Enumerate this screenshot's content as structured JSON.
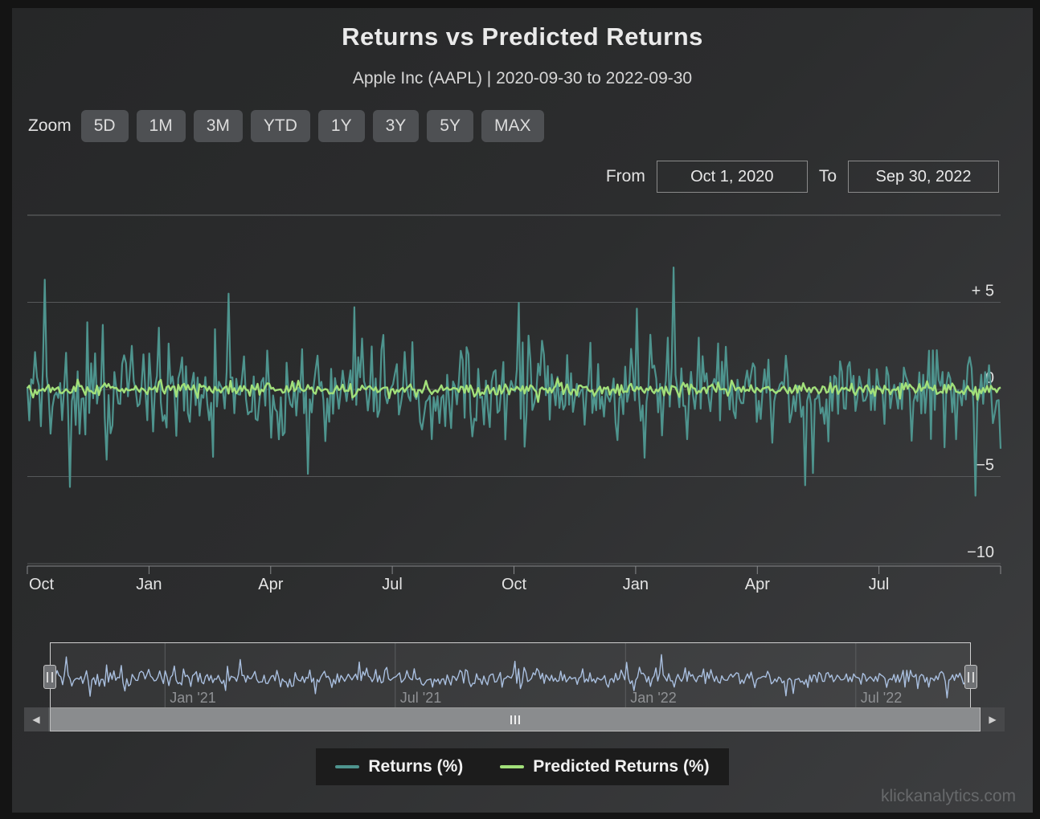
{
  "header": {
    "title": "Returns vs Predicted Returns",
    "subtitle": "Apple Inc (AAPL) | 2020-09-30 to 2022-09-30"
  },
  "toolbar": {
    "zoom_label": "Zoom",
    "buttons": [
      "5D",
      "1M",
      "3M",
      "YTD",
      "1Y",
      "3Y",
      "5Y",
      "MAX"
    ]
  },
  "range_selector": {
    "from_label": "From",
    "from_value": "Oct 1, 2020",
    "to_label": "To",
    "to_value": "Sep 30, 2022"
  },
  "chart_data": {
    "type": "line",
    "title": "Returns vs Predicted Returns",
    "subtitle": "Apple Inc (AAPL) | 2020-09-30 to 2022-09-30",
    "x_range": [
      "2020-09-30",
      "2022-09-30"
    ],
    "x_axis": {
      "tick_labels": [
        "Oct",
        "Jan",
        "Apr",
        "Jul",
        "Oct",
        "Jan",
        "Apr",
        "Jul"
      ],
      "tick_count": 9
    },
    "y_axis": {
      "range": [
        -10,
        10
      ],
      "grid": true,
      "ticks": [
        {
          "value": 10,
          "label": ""
        },
        {
          "value": 5,
          "label": "+ 5"
        },
        {
          "value": 0,
          "label": "0"
        },
        {
          "value": -5,
          "label": "−5"
        },
        {
          "value": -10,
          "label": "−10"
        }
      ]
    },
    "series": [
      {
        "name": "Returns (%)",
        "color": "#4e948e",
        "points": 504,
        "approx_stdev": 1.6,
        "observed_range": [
          -6.1,
          7.0
        ],
        "seed": 20201001,
        "anchors": [
          [
            9,
            6.3
          ],
          [
            22,
            -5.6
          ],
          [
            104,
            5.5
          ],
          [
            334,
            7.0
          ],
          [
            402,
            -5.5
          ],
          [
            406,
            -4.8
          ],
          [
            490,
            -6.1
          ],
          [
            503,
            -3.4
          ]
        ]
      },
      {
        "name": "Predicted Returns (%)",
        "color": "#a2e07a",
        "points": 504,
        "approx_stdev": 0.22,
        "observed_range": [
          -0.8,
          0.8
        ],
        "seed": 42,
        "anchors": []
      }
    ],
    "legend": {
      "position": "bottom",
      "items": [
        {
          "label": "Returns (%)",
          "color": "#4e948e"
        },
        {
          "label": "Predicted Returns (%)",
          "color": "#a2e07a"
        }
      ]
    },
    "navigator": {
      "series_shown": "Returns (%)",
      "series_color": "#a9bfdf",
      "labels": [
        {
          "text": "Jan '21",
          "pos": 0.125
        },
        {
          "text": "Jul '21",
          "pos": 0.375
        },
        {
          "text": "Jan '22",
          "pos": 0.625
        },
        {
          "text": "Jul '22",
          "pos": 0.875
        }
      ]
    }
  },
  "watermark": "klickanalytics.com",
  "colors": {
    "frame": "#141414",
    "chart_bg_start": "#262728",
    "chart_bg_end": "#3d3e40",
    "grid": "#56585a",
    "grid_top": "#67696b",
    "axis": "#87898b",
    "text_primary": "#eaeaea",
    "text_muted": "#8f9194",
    "button_bg": "#4e5053",
    "returns": "#4e948e",
    "predicted": "#a2e07a",
    "navigator_line": "#a9bfdf"
  }
}
